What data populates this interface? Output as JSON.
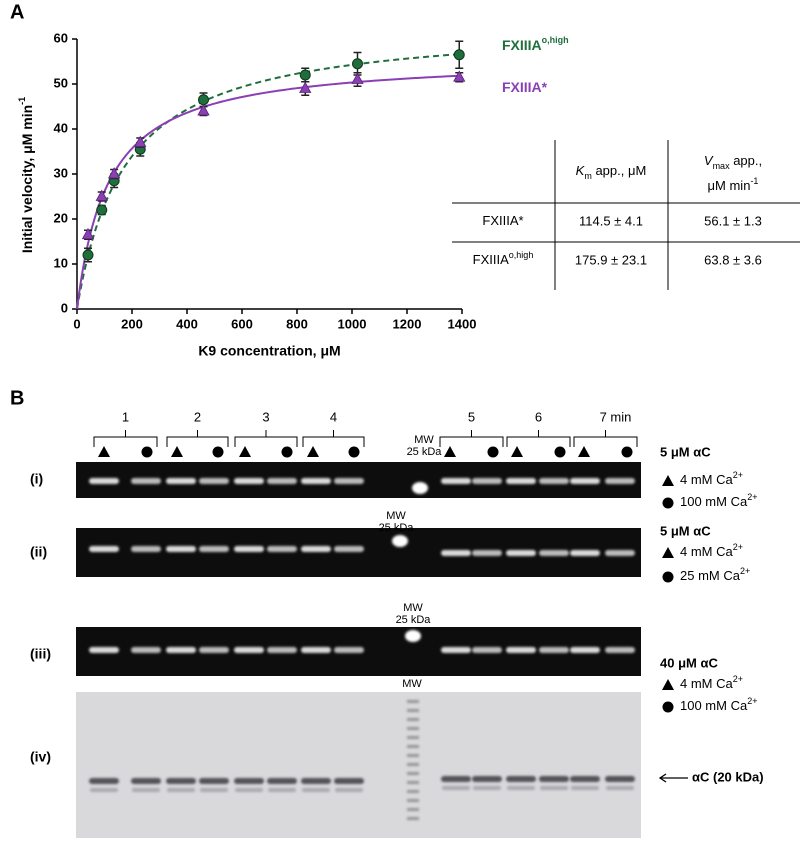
{
  "labels": {
    "a": "A",
    "b": "B"
  },
  "chart_data": {
    "type": "scatter",
    "xlabel": "K9 concentration, μM",
    "ylabel": "Initial velocity, μM min",
    "ylabel_sup": "-1",
    "x": [
      40,
      90,
      135,
      230,
      460,
      830,
      1020,
      1390
    ],
    "series": [
      {
        "name": "FXIIIA",
        "name_sup": "o,high",
        "color": "#1f6e3c",
        "linestyle": "dashed",
        "marker": "circle",
        "values": [
          12,
          22,
          28.5,
          35.5,
          46.5,
          52,
          54.5,
          56.5
        ],
        "errors": [
          1.5,
          1,
          1.5,
          1.5,
          1.5,
          1.5,
          2.5,
          3
        ],
        "km": 175.9,
        "vmax": 63.8
      },
      {
        "name": "FXIIIA*",
        "color": "#8b3fb5",
        "linestyle": "solid",
        "marker": "triangle",
        "values": [
          16.5,
          25,
          30,
          37,
          44,
          49,
          51,
          51.5
        ],
        "errors": [
          1,
          1,
          1,
          1,
          1,
          1.5,
          1.5,
          1
        ],
        "km": 114.5,
        "vmax": 56.1
      }
    ],
    "xlim": [
      0,
      1400
    ],
    "xticks": [
      0,
      200,
      400,
      600,
      800,
      1000,
      1200,
      1400
    ],
    "ylim": [
      0,
      60
    ],
    "yticks": [
      0,
      10,
      20,
      30,
      40,
      50,
      60
    ]
  },
  "table": {
    "columns": [
      {
        "symbol": "K",
        "sub": "m",
        "text": " app., μM"
      },
      {
        "symbol": "V",
        "sub": "max",
        "text": " app.,",
        "line2": "μM min",
        "sup": "-1"
      }
    ],
    "rows": [
      {
        "name": "FXIIIA*",
        "cells": [
          "114.5 ± 4.1",
          "56.1 ± 1.3"
        ]
      },
      {
        "name": "FXIIIA",
        "sup": "o,high",
        "cells": [
          "175.9 ± 23.1",
          "63.8 ± 3.6"
        ]
      }
    ]
  },
  "gels": {
    "timepoints": [
      "1",
      "2",
      "3",
      "4",
      "5",
      "6",
      "7 min"
    ],
    "mw": "MW",
    "mw_size": "25 kDa",
    "rows": [
      "(i)",
      "(ii)",
      "(iii)",
      "(iv)"
    ],
    "ca_sup": "2+",
    "legends": [
      {
        "title": "5 μM αC",
        "conditions": [
          "4 mM Ca",
          "100 mM Ca"
        ]
      },
      {
        "title": "5 μM αC",
        "conditions": [
          "4 mM Ca",
          "25 mM Ca"
        ]
      },
      {
        "title": "40 μM αC",
        "conditions": [
          "4 mM Ca",
          "100 mM Ca"
        ]
      }
    ],
    "band_label": "αC (20 kDa)"
  }
}
